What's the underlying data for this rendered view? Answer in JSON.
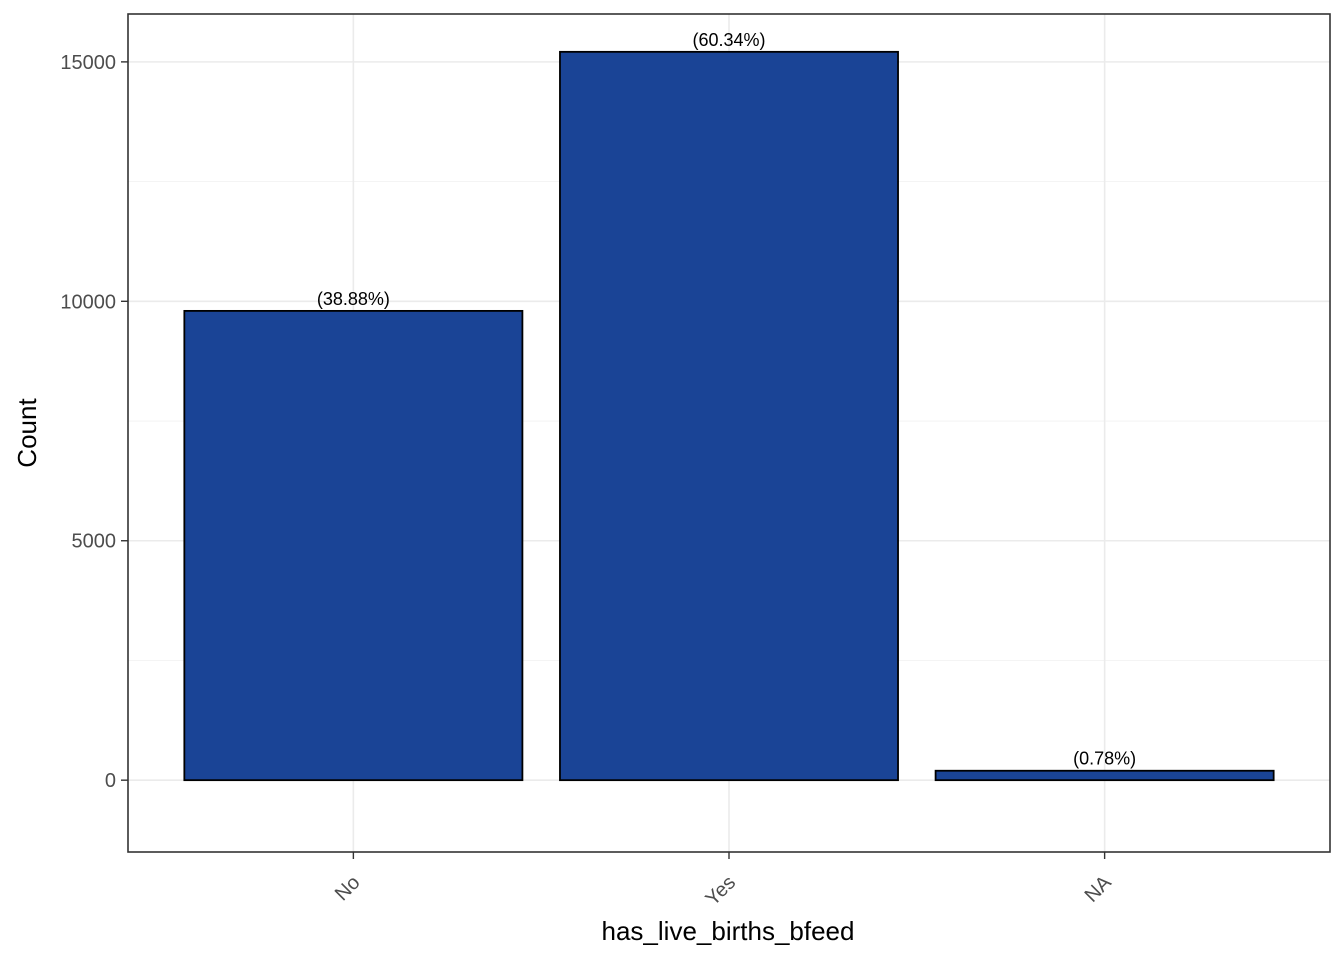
{
  "chart_data": {
    "type": "bar",
    "categories": [
      "No",
      "Yes",
      "NA"
    ],
    "values": [
      9800,
      15210,
      197
    ],
    "data_labels": [
      "(38.88%)",
      "(60.34%)",
      "(0.78%)"
    ],
    "title": "",
    "xlabel": "has_live_births_bfeed",
    "ylabel": "Count",
    "ylim": [
      -1500,
      16000
    ],
    "yticks": [
      0,
      5000,
      10000,
      15000
    ],
    "ytick_labels": [
      "0",
      "5000",
      "10000",
      "15000"
    ],
    "grid": true,
    "bar_color": "#1a4496",
    "bar_outline_color": "#000000"
  }
}
